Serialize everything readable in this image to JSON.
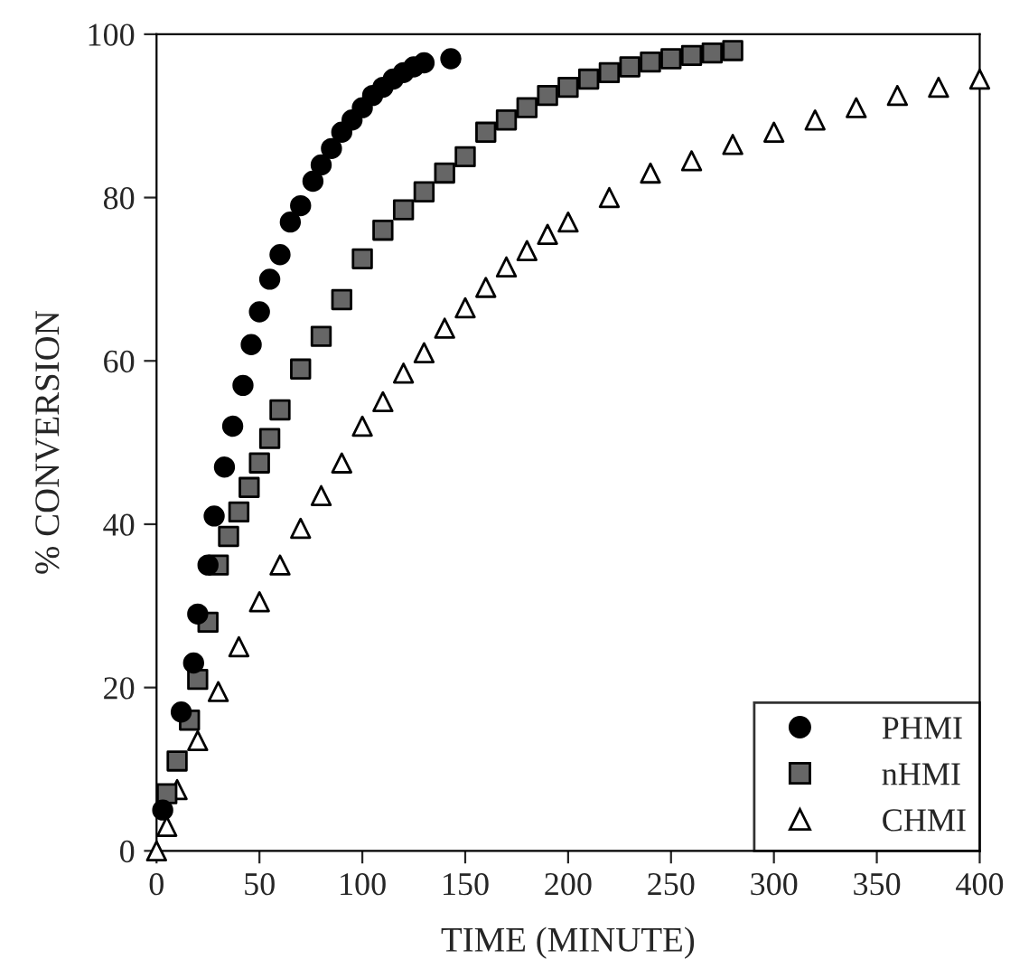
{
  "chart_data": {
    "type": "scatter",
    "xlabel": "TIME (MINUTE)",
    "ylabel": "% CONVERSION",
    "xlim": [
      0,
      400
    ],
    "xticks": [
      0,
      50,
      100,
      150,
      200,
      250,
      300,
      350,
      400
    ],
    "ylim": [
      0,
      100
    ],
    "yticks": [
      0,
      20,
      40,
      60,
      80,
      100
    ],
    "grid": false,
    "legend": "bottom right",
    "series": [
      {
        "name": "PHMI",
        "color": "#000000",
        "marker": "circle",
        "x": [
          3,
          12,
          18,
          20,
          25,
          28,
          33,
          37,
          42,
          46,
          50,
          55,
          60,
          65,
          70,
          76,
          80,
          85,
          90,
          95,
          100,
          105,
          110,
          115,
          120,
          125,
          130,
          143
        ],
        "values": [
          5,
          17,
          23,
          29,
          35,
          41,
          47,
          52,
          57,
          62,
          66,
          70,
          73,
          77,
          79,
          82,
          84,
          86,
          88,
          89.5,
          91,
          92.5,
          93.5,
          94.5,
          95.3,
          96,
          96.5,
          97
        ]
      },
      {
        "name": "nHMI",
        "color": "#666666",
        "marker": "square",
        "x": [
          5,
          10,
          16,
          20,
          25,
          30,
          35,
          40,
          45,
          50,
          55,
          60,
          70,
          80,
          90,
          100,
          110,
          120,
          130,
          140,
          150,
          160,
          170,
          180,
          190,
          200,
          210,
          220,
          230,
          240,
          250,
          260,
          270,
          280
        ],
        "values": [
          7,
          11,
          16,
          21,
          28,
          35,
          38.5,
          41.5,
          44.5,
          47.5,
          50.5,
          54,
          59,
          63,
          67.5,
          72.5,
          76,
          78.5,
          80.7,
          83,
          85,
          88,
          89.5,
          91,
          92.5,
          93.5,
          94.5,
          95.3,
          96,
          96.6,
          97,
          97.4,
          97.7,
          98
        ]
      },
      {
        "name": "CHMI",
        "color": "#ffffff",
        "marker": "triangle",
        "x": [
          0,
          5,
          10,
          20,
          30,
          40,
          50,
          60,
          70,
          80,
          90,
          100,
          110,
          120,
          130,
          140,
          150,
          160,
          170,
          180,
          190,
          200,
          220,
          240,
          260,
          280,
          300,
          320,
          340,
          360,
          380,
          400
        ],
        "values": [
          0,
          3,
          7.5,
          13.5,
          19.5,
          25,
          30.5,
          35,
          39.5,
          43.5,
          47.5,
          52,
          55,
          58.5,
          61,
          64,
          66.5,
          69,
          71.5,
          73.5,
          75.5,
          77,
          80,
          83,
          84.5,
          86.5,
          88,
          89.5,
          91,
          92.5,
          93.5,
          94.5
        ]
      }
    ]
  }
}
